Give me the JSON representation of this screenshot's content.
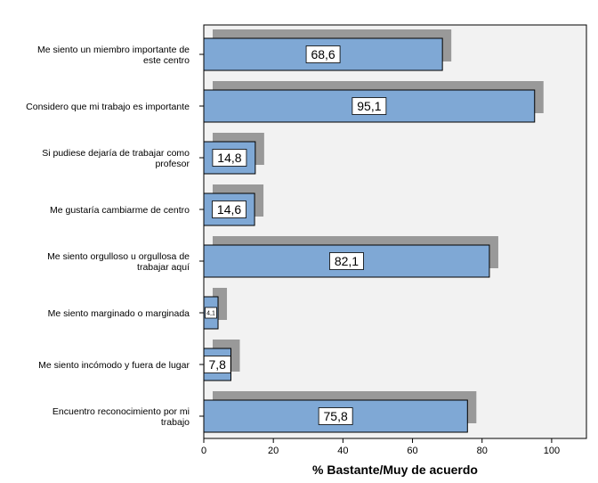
{
  "chart_data": {
    "type": "bar",
    "orientation": "horizontal",
    "categories": [
      [
        "Me siento un miembro importante de",
        "este centro"
      ],
      [
        "Considero que mi trabajo es importante"
      ],
      [
        "Si pudiese dejaría de trabajar como",
        "profesor"
      ],
      [
        "Me gustaría cambiarme de centro"
      ],
      [
        "Me siento orgulloso u orgullosa de",
        "trabajar aquí"
      ],
      [
        "Me siento marginado o marginada"
      ],
      [
        "Me siento incómodo y fuera de lugar"
      ],
      [
        "Encuentro reconocimiento por mi",
        "trabajo"
      ]
    ],
    "values": [
      68.6,
      95.1,
      14.8,
      14.6,
      82.1,
      4.1,
      7.8,
      75.8
    ],
    "value_labels": [
      "68,6",
      "95,1",
      "14,8",
      "14,6",
      "82,1",
      "4,1",
      "7,8",
      "75,8"
    ],
    "xlabel": "% Bastante/Muy de acuerdo",
    "ylabel": "",
    "title": "",
    "xlim": [
      0,
      110
    ],
    "xticks": [
      0,
      20,
      40,
      60,
      80,
      100
    ],
    "grid": false,
    "bar_color": "#7fa8d5",
    "shadow_color": "#999999",
    "plot_background": "#f2f2f2"
  }
}
